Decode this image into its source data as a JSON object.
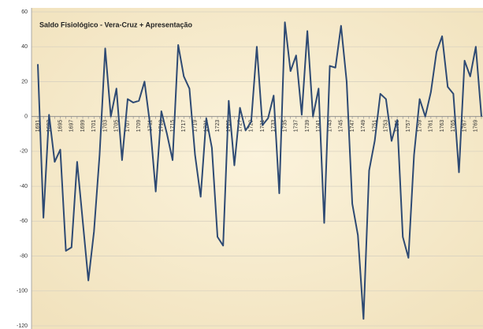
{
  "chart_data": {
    "type": "line",
    "title": "Saldo Fisiológico - Vera-Cruz + Apresentação",
    "categories": [
      "1691",
      null,
      "1693",
      null,
      "1695",
      null,
      "1697",
      null,
      "1699",
      null,
      "1701",
      null,
      "1703",
      null,
      "1705",
      null,
      "1707",
      null,
      "1709",
      null,
      "1711",
      null,
      "1713",
      null,
      "1715",
      null,
      "1717",
      null,
      "1719",
      null,
      "1721",
      null,
      "1723",
      null,
      "1725",
      null,
      "1727",
      null,
      "1729",
      null,
      "1731",
      null,
      "1733",
      null,
      "1735",
      null,
      "1737",
      null,
      "1739",
      null,
      "1741",
      null,
      "1743",
      null,
      "1745",
      null,
      "1747",
      null,
      "1749",
      null,
      "1751",
      null,
      "1753",
      null,
      "1755",
      null,
      "1757",
      null,
      "1759",
      null,
      "1761",
      null,
      "1763",
      null,
      "1765",
      null,
      "1767",
      null,
      "1769",
      null
    ],
    "values": [
      30,
      -58,
      1,
      -26,
      -19,
      -77,
      -75,
      -26,
      -60,
      -94,
      -66,
      -22,
      39,
      0,
      16,
      -25,
      10,
      8,
      9,
      20,
      -5,
      -43,
      3,
      -10,
      -25,
      41,
      23,
      16,
      -22,
      -46,
      -1,
      -18,
      -69,
      -74,
      9,
      -28,
      5,
      -8,
      -3,
      40,
      -5,
      -1,
      12,
      -44,
      54,
      26,
      35,
      1,
      49,
      0,
      16,
      -61,
      29,
      28,
      52,
      20,
      -50,
      -68,
      -116,
      -31,
      -14,
      13,
      10,
      -14,
      -2,
      -69,
      -81,
      -22,
      10,
      0,
      14,
      37,
      46,
      17,
      13,
      -32,
      32,
      23,
      40,
      0
    ],
    "color": "#2e4a73",
    "ylim": [
      -120,
      60
    ],
    "yticks": [
      -120,
      -100,
      -80,
      -60,
      -40,
      -20,
      0,
      20,
      40,
      60
    ],
    "grid": true
  }
}
